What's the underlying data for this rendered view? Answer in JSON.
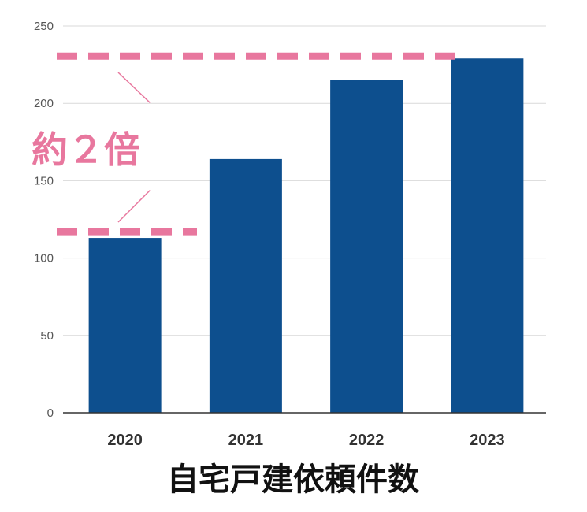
{
  "chart_data": {
    "type": "bar",
    "categories": [
      "2020",
      "2021",
      "2022",
      "2023"
    ],
    "values": [
      113,
      164,
      215,
      229
    ],
    "xlabel": "自宅戸建依頼件数",
    "ylabel": "",
    "ylim": [
      0,
      250
    ],
    "yticks": [
      0,
      50,
      100,
      150,
      200,
      250
    ],
    "grid": true,
    "legend": "none",
    "bar_color": "#0d4f8e",
    "annotation": {
      "text": "約２倍",
      "color": "#e8779e",
      "from_value": 113,
      "to_value": 229
    }
  }
}
